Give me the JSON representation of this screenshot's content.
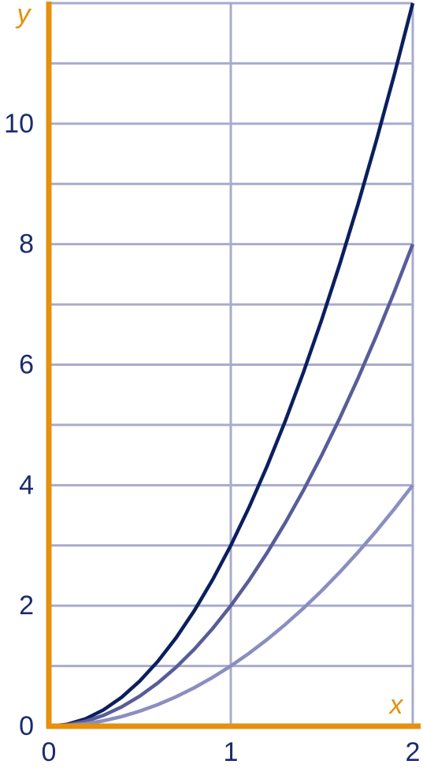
{
  "chart_data": {
    "type": "line",
    "x_label": "x",
    "y_label": "y",
    "x": [
      0,
      0.1,
      0.2,
      0.3,
      0.4,
      0.5,
      0.6,
      0.7,
      0.8,
      0.9,
      1,
      1.1,
      1.2,
      1.3,
      1.4,
      1.5,
      1.6,
      1.7,
      1.8,
      1.9,
      2
    ],
    "series": [
      {
        "color": "#0b1f5e",
        "values": [
          0,
          0.03,
          0.12,
          0.27,
          0.48,
          0.75,
          1.08,
          1.47,
          1.92,
          2.43,
          3,
          3.63,
          4.32,
          5.07,
          5.88,
          6.75,
          7.68,
          8.67,
          9.72,
          10.83,
          12
        ]
      },
      {
        "color": "#585d99",
        "values": [
          0,
          0.02,
          0.08,
          0.18,
          0.32,
          0.5,
          0.72,
          0.98,
          1.28,
          1.62,
          2,
          2.42,
          2.88,
          3.38,
          3.92,
          4.5,
          5.12,
          5.78,
          6.48,
          7.22,
          8
        ]
      },
      {
        "color": "#8a8ebf",
        "values": [
          0,
          0.01,
          0.04,
          0.09,
          0.16,
          0.25,
          0.36,
          0.49,
          0.64,
          0.81,
          1,
          1.21,
          1.44,
          1.69,
          1.96,
          2.25,
          2.56,
          2.89,
          3.24,
          3.61,
          4
        ]
      }
    ],
    "xlim": [
      0,
      2
    ],
    "ylim": [
      0,
      12
    ],
    "xticks": [
      0,
      1,
      2
    ],
    "yticks": [
      0,
      2,
      4,
      6,
      8,
      10
    ],
    "yminor_ticks": [
      1,
      3,
      5,
      7,
      9,
      11,
      12
    ],
    "grid": true,
    "grid_color": "#a9abcc",
    "axis_color": "#e6900e",
    "tick_color": "#1b2b6b"
  }
}
